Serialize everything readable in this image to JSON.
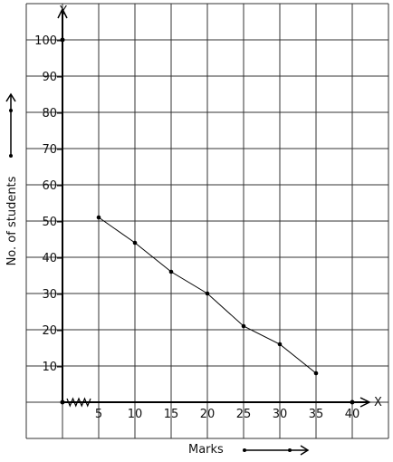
{
  "chart_data": {
    "type": "line",
    "title": "",
    "xlabel": "Marks",
    "ylabel": "No. of students",
    "x_axis_letter": "X",
    "y_axis_letter": "Y",
    "x_ticks": [
      5,
      10,
      15,
      20,
      25,
      30,
      35,
      40
    ],
    "y_ticks": [
      10,
      20,
      30,
      40,
      50,
      60,
      70,
      80,
      90,
      100
    ],
    "xlim": [
      0,
      40
    ],
    "ylim": [
      0,
      100
    ],
    "grid": true,
    "x_axis_break": true,
    "series": [
      {
        "x": [
          5,
          10,
          15,
          20,
          25,
          30,
          35
        ],
        "y": [
          51,
          44,
          36,
          30,
          21,
          16,
          8
        ]
      }
    ]
  }
}
